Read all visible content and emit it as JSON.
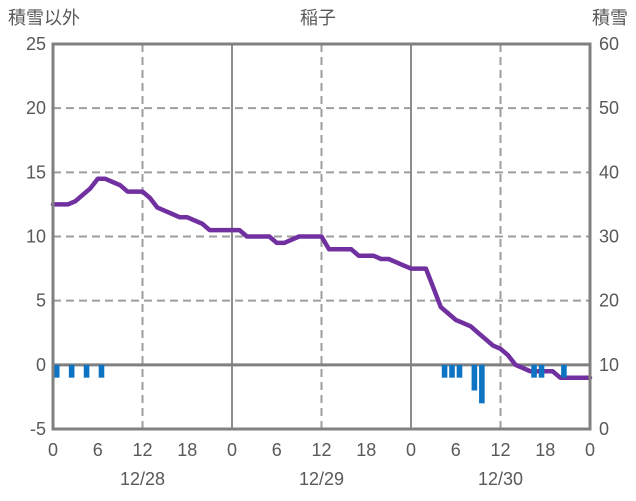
{
  "chart_data": {
    "type": "line",
    "station_title": "稲子",
    "left_axis_title": "積雪以外",
    "right_axis_title": "積雪",
    "x_axis": {
      "range_hours": [
        0,
        72
      ],
      "hour_tick_step": 6,
      "hour_tick_labels": [
        "0",
        "6",
        "12",
        "18",
        "0",
        "6",
        "12",
        "18",
        "0",
        "6",
        "12",
        "18",
        "0"
      ],
      "date_labels": [
        {
          "label": "12/28",
          "center_hour": 12
        },
        {
          "label": "12/29",
          "center_hour": 36
        },
        {
          "label": "12/30",
          "center_hour": 60
        }
      ],
      "dashed_gridline_hours": [
        12,
        36,
        60
      ],
      "solid_gridline_hours": [
        24,
        48
      ]
    },
    "y_left": {
      "min": -5,
      "max": 25,
      "tick_values": [
        25,
        20,
        15,
        10,
        5,
        0,
        -5
      ],
      "tick_labels": [
        "25",
        "20",
        "15",
        "10",
        "5",
        "0",
        "-5"
      ],
      "dashed_gridline_values": [
        20,
        15,
        10,
        5
      ],
      "zero_line_value": 0
    },
    "y_right": {
      "min": 0,
      "max": 60,
      "tick_values": [
        60,
        50,
        40,
        30,
        20,
        10,
        0
      ],
      "tick_labels": [
        "60",
        "50",
        "40",
        "30",
        "20",
        "10",
        "0"
      ]
    },
    "series": [
      {
        "name": "積雪",
        "type": "line",
        "axis": "right",
        "color": "#7030A0",
        "start_hour": 0,
        "values": [
          35,
          35,
          35,
          35.5,
          36.5,
          37.5,
          39,
          39,
          38.5,
          38,
          37,
          37,
          37,
          36,
          34.5,
          34,
          33.5,
          33,
          33,
          32.5,
          32,
          31,
          31,
          31,
          31,
          31,
          30,
          30,
          30,
          30,
          29,
          29,
          29.5,
          30,
          30,
          30,
          30,
          28,
          28,
          28,
          28,
          27,
          27,
          27,
          26.5,
          26.5,
          26,
          25.5,
          25,
          25,
          25,
          22,
          19,
          18,
          17,
          16.5,
          16,
          15,
          14,
          13,
          12.5,
          11.5,
          10,
          9.5,
          9,
          9,
          9,
          9,
          8,
          8,
          8,
          8,
          8
        ]
      },
      {
        "name": "積雪以外",
        "type": "bar",
        "axis": "left",
        "color": "#0D74C4",
        "points": [
          {
            "hour": 0,
            "value": -1
          },
          {
            "hour": 2,
            "value": -1
          },
          {
            "hour": 4,
            "value": -1
          },
          {
            "hour": 6,
            "value": -1
          },
          {
            "hour": 52,
            "value": -1
          },
          {
            "hour": 53,
            "value": -1
          },
          {
            "hour": 54,
            "value": -1
          },
          {
            "hour": 56,
            "value": -2
          },
          {
            "hour": 57,
            "value": -3
          },
          {
            "hour": 64,
            "value": -1
          },
          {
            "hour": 65,
            "value": -1
          },
          {
            "hour": 68,
            "value": -1
          }
        ]
      }
    ],
    "style": {
      "frame_color": "#808080",
      "grid_color": "#9E9E9E",
      "day_line_color": "#8C8C8C",
      "zero_line_color": "#808080",
      "text_color": "#595959"
    }
  }
}
